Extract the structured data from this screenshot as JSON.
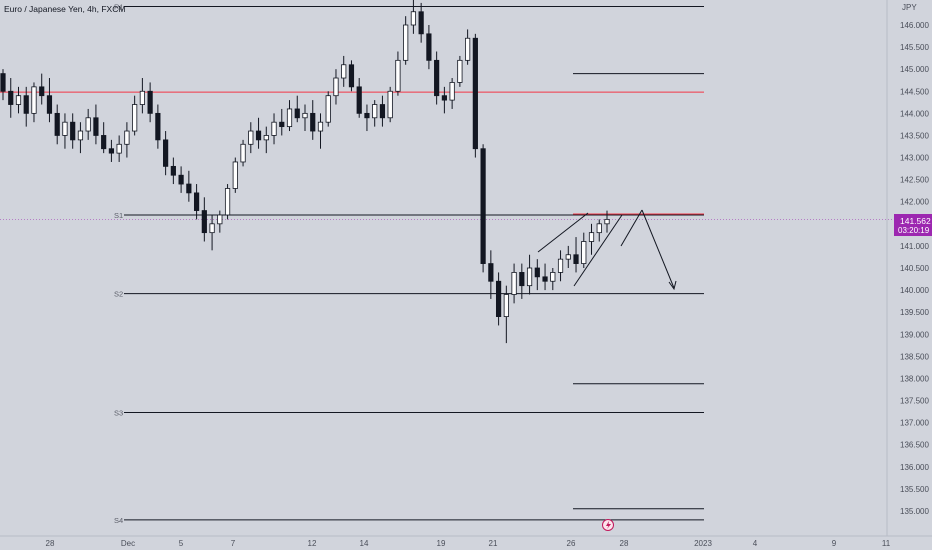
{
  "header": {
    "symbol_title": "Euro / Japanese Yen, 4h, FXCM"
  },
  "price_axis": {
    "currency": "JPY",
    "ticks": [
      "146.000",
      "145.500",
      "145.000",
      "144.500",
      "144.000",
      "143.500",
      "143.000",
      "142.500",
      "142.000",
      "141.500",
      "141.000",
      "140.500",
      "140.000",
      "139.500",
      "139.000",
      "138.500",
      "138.000",
      "137.500",
      "137.000",
      "136.500",
      "136.000",
      "135.500",
      "135.000"
    ],
    "current_price": "141.562",
    "countdown": "03:20:19"
  },
  "time_axis": {
    "ticks": [
      "28",
      "Dec",
      "5",
      "7",
      "12",
      "14",
      "19",
      "21",
      "26",
      "28",
      "2023",
      "4",
      "9",
      "11"
    ]
  },
  "pivots": [
    {
      "label": "R1",
      "price": 146.42
    },
    {
      "label": "S1",
      "price": 141.7
    },
    {
      "label": "S2",
      "price": 139.92
    },
    {
      "label": "S3",
      "price": 137.23
    },
    {
      "label": "S4",
      "price": 134.8
    }
  ],
  "colors": {
    "background": "#d1d4dc",
    "bullish_candle": "#ffffff",
    "bearish_candle": "#131722",
    "red_level": "#f23645",
    "current_price_badge": "#9c27b0",
    "text": "#4a4e59"
  },
  "chart_data": {
    "type": "candlestick",
    "title": "Euro / Japanese Yen, 4h, FXCM",
    "y_unit": "JPY",
    "ylim": [
      134.6,
      146.6
    ],
    "x_range": [
      "Nov 28",
      "Jan 11"
    ],
    "pivot_levels": [
      146.42,
      141.7,
      139.92,
      137.23,
      134.8
    ],
    "red_lines": [
      144.48,
      141.7
    ],
    "projection_lines": [
      144.9,
      137.88,
      135.05
    ],
    "ohlc_trend": [
      [
        144.9,
        145.0,
        144.3,
        144.5
      ],
      [
        144.5,
        144.8,
        143.9,
        144.2
      ],
      [
        144.2,
        144.6,
        144.0,
        144.4
      ],
      [
        144.4,
        144.6,
        143.7,
        144.0
      ],
      [
        144.0,
        144.7,
        143.8,
        144.6
      ],
      [
        144.6,
        144.9,
        144.2,
        144.4
      ],
      [
        144.4,
        144.8,
        143.8,
        144.0
      ],
      [
        144.0,
        144.2,
        143.3,
        143.5
      ],
      [
        143.5,
        144.0,
        143.2,
        143.8
      ],
      [
        143.8,
        144.0,
        143.2,
        143.4
      ],
      [
        143.4,
        143.8,
        143.1,
        143.6
      ],
      [
        143.6,
        144.1,
        143.4,
        143.9
      ],
      [
        143.9,
        144.2,
        143.3,
        143.5
      ],
      [
        143.5,
        143.8,
        143.1,
        143.2
      ],
      [
        143.2,
        143.4,
        142.9,
        143.1
      ],
      [
        143.1,
        143.5,
        142.9,
        143.3
      ],
      [
        143.3,
        143.8,
        143.0,
        143.6
      ],
      [
        143.6,
        144.4,
        143.5,
        144.2
      ],
      [
        144.2,
        144.8,
        144.0,
        144.5
      ],
      [
        144.5,
        144.7,
        143.8,
        144.0
      ],
      [
        144.0,
        144.2,
        143.2,
        143.4
      ],
      [
        143.4,
        143.6,
        142.6,
        142.8
      ],
      [
        142.8,
        143.0,
        142.4,
        142.6
      ],
      [
        142.6,
        142.8,
        142.2,
        142.4
      ],
      [
        142.4,
        142.7,
        142.0,
        142.2
      ],
      [
        142.2,
        142.4,
        141.6,
        141.8
      ],
      [
        141.8,
        142.1,
        141.1,
        141.3
      ],
      [
        141.3,
        141.7,
        140.9,
        141.5
      ],
      [
        141.5,
        141.8,
        141.3,
        141.7
      ],
      [
        141.7,
        142.4,
        141.6,
        142.3
      ],
      [
        142.3,
        143.0,
        142.2,
        142.9
      ],
      [
        142.9,
        143.4,
        142.8,
        143.3
      ],
      [
        143.3,
        143.8,
        143.1,
        143.6
      ],
      [
        143.6,
        143.9,
        143.2,
        143.4
      ],
      [
        143.4,
        143.7,
        143.1,
        143.5
      ],
      [
        143.5,
        144.0,
        143.3,
        143.8
      ],
      [
        143.8,
        144.1,
        143.5,
        143.7
      ],
      [
        143.7,
        144.3,
        143.6,
        144.1
      ],
      [
        144.1,
        144.4,
        143.8,
        143.9
      ],
      [
        143.9,
        144.2,
        143.6,
        144.0
      ],
      [
        144.0,
        144.3,
        143.4,
        143.6
      ],
      [
        143.6,
        144.0,
        143.2,
        143.8
      ],
      [
        143.8,
        144.5,
        143.7,
        144.4
      ],
      [
        144.4,
        145.0,
        144.2,
        144.8
      ],
      [
        144.8,
        145.3,
        144.6,
        145.1
      ],
      [
        145.1,
        145.2,
        144.5,
        144.6
      ],
      [
        144.6,
        144.8,
        143.9,
        144.0
      ],
      [
        144.0,
        144.2,
        143.6,
        143.9
      ],
      [
        143.9,
        144.3,
        143.7,
        144.2
      ],
      [
        144.2,
        144.4,
        143.7,
        143.9
      ],
      [
        143.9,
        144.6,
        143.8,
        144.5
      ],
      [
        144.5,
        145.4,
        144.4,
        145.2
      ],
      [
        145.2,
        146.2,
        145.1,
        146.0
      ],
      [
        146.0,
        146.6,
        145.8,
        146.3
      ],
      [
        146.3,
        146.5,
        145.6,
        145.8
      ],
      [
        145.8,
        146.0,
        145.0,
        145.2
      ],
      [
        145.2,
        145.4,
        144.2,
        144.4
      ],
      [
        144.4,
        144.6,
        144.0,
        144.3
      ],
      [
        144.3,
        144.8,
        144.1,
        144.7
      ],
      [
        144.7,
        145.3,
        144.6,
        145.2
      ],
      [
        145.2,
        145.9,
        145.1,
        145.7
      ],
      [
        145.7,
        145.8,
        143.0,
        143.2
      ],
      [
        143.2,
        143.3,
        140.4,
        140.6
      ],
      [
        140.6,
        140.9,
        139.8,
        140.2
      ],
      [
        140.2,
        140.4,
        139.2,
        139.4
      ],
      [
        139.4,
        140.1,
        138.8,
        139.9
      ],
      [
        139.9,
        140.6,
        139.7,
        140.4
      ],
      [
        140.4,
        140.6,
        139.8,
        140.1
      ],
      [
        140.1,
        140.8,
        139.9,
        140.5
      ],
      [
        140.5,
        140.7,
        140.0,
        140.3
      ],
      [
        140.3,
        140.6,
        140.0,
        140.2
      ],
      [
        140.2,
        140.5,
        140.0,
        140.4
      ],
      [
        140.4,
        140.9,
        140.2,
        140.7
      ],
      [
        140.7,
        141.0,
        140.5,
        140.8
      ],
      [
        140.8,
        141.2,
        140.4,
        140.6
      ],
      [
        140.6,
        141.3,
        140.5,
        141.1
      ],
      [
        141.1,
        141.5,
        140.8,
        141.3
      ],
      [
        141.3,
        141.6,
        141.1,
        141.5
      ],
      [
        141.5,
        141.8,
        141.3,
        141.6
      ]
    ]
  }
}
